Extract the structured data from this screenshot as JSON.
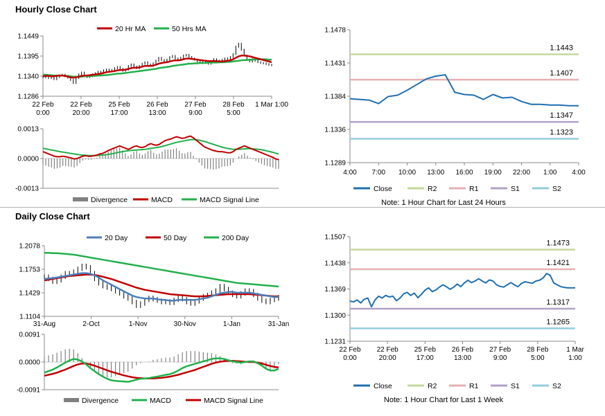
{
  "sections": {
    "hourly": "Hourly Close Chart",
    "daily": "Daily Close Chart"
  },
  "chart_data": [
    {
      "id": "hourly_ma",
      "type": "line",
      "ylim": [
        1.1286,
        1.1449
      ],
      "yticks": [
        "1.1449",
        "1.1395",
        "1.1340",
        "1.1286"
      ],
      "xticks": [
        "22 Feb\n0:00",
        "22 Feb\n20:00",
        "25 Feb\n17:00",
        "26 Feb\n13:00",
        "27 Feb\n9:00",
        "28 Feb\n5:00",
        "1 Mar 1:00"
      ],
      "legend": [
        "20 Hr MA",
        "50 Hrs MA"
      ],
      "colors": {
        "close": "#000000",
        "ma20": "#c00000",
        "ma50": "#22b04b"
      },
      "close": [
        1.1337,
        1.1339,
        1.1335,
        1.134,
        1.1332,
        1.1338,
        1.1342,
        1.1344,
        1.134,
        1.1336,
        1.133,
        1.1322,
        1.1335,
        1.1345,
        1.135,
        1.1342,
        1.1338,
        1.134,
        1.1345,
        1.1348,
        1.1352,
        1.135,
        1.1356,
        1.1358,
        1.1354,
        1.1357,
        1.1362,
        1.1365,
        1.136,
        1.1355,
        1.1358,
        1.1368,
        1.1372,
        1.1366,
        1.1362,
        1.1368,
        1.1374,
        1.1378,
        1.1372,
        1.1368,
        1.1375,
        1.1382,
        1.139,
        1.1384,
        1.138,
        1.1385,
        1.1392,
        1.1395,
        1.1388,
        1.1384,
        1.139,
        1.1396,
        1.1398,
        1.1392,
        1.1388,
        1.1385,
        1.138,
        1.1376,
        1.1382,
        1.1378,
        1.1374,
        1.138,
        1.1386,
        1.1382,
        1.1378,
        1.1384,
        1.1388,
        1.1386,
        1.1392,
        1.14,
        1.142,
        1.1428,
        1.1412,
        1.1396,
        1.1384,
        1.138,
        1.1386,
        1.1382,
        1.1378,
        1.1376,
        1.1375,
        1.1373,
        1.1371,
        1.137
      ],
      "ma20": [
        1.134,
        1.1341,
        1.1341,
        1.134,
        1.134,
        1.1341,
        1.1342,
        1.1342,
        1.1341,
        1.1339,
        1.1337,
        1.1336,
        1.1337,
        1.1339,
        1.1341,
        1.1342,
        1.1342,
        1.1343,
        1.1344,
        1.1345,
        1.1346,
        1.1347,
        1.1349,
        1.1351,
        1.1352,
        1.1353,
        1.1354,
        1.1356,
        1.1357,
        1.1357,
        1.1358,
        1.136,
        1.1362,
        1.1363,
        1.1363,
        1.1364,
        1.1366,
        1.1368,
        1.1368,
        1.1368,
        1.1369,
        1.1371,
        1.1374,
        1.1376,
        1.1377,
        1.1378,
        1.138,
        1.1382,
        1.1383,
        1.1383,
        1.1384,
        1.1386,
        1.1388,
        1.1388,
        1.1387,
        1.1386,
        1.1385,
        1.1384,
        1.1383,
        1.1382,
        1.1381,
        1.1381,
        1.1381,
        1.1381,
        1.138,
        1.138,
        1.1381,
        1.1382,
        1.1383,
        1.1386,
        1.139,
        1.1394,
        1.1396,
        1.1396,
        1.1395,
        1.1394,
        1.1392,
        1.139,
        1.1388,
        1.1386,
        1.1384,
        1.1382,
        1.138,
        1.1378
      ],
      "ma50": [
        1.1344,
        1.1344,
        1.1343,
        1.1343,
        1.1342,
        1.1342,
        1.1342,
        1.1342,
        1.1341,
        1.1341,
        1.134,
        1.1339,
        1.1339,
        1.1339,
        1.1339,
        1.134,
        1.134,
        1.134,
        1.1341,
        1.1341,
        1.1342,
        1.1342,
        1.1343,
        1.1343,
        1.1344,
        1.1345,
        1.1346,
        1.1347,
        1.1347,
        1.1348,
        1.1349,
        1.135,
        1.1351,
        1.1352,
        1.1353,
        1.1354,
        1.1355,
        1.1356,
        1.1357,
        1.1358,
        1.1359,
        1.136,
        1.1362,
        1.1363,
        1.1364,
        1.1365,
        1.1366,
        1.1368,
        1.1369,
        1.137,
        1.1371,
        1.1372,
        1.1373,
        1.1374,
        1.1374,
        1.1375,
        1.1375,
        1.1376,
        1.1376,
        1.1376,
        1.1377,
        1.1377,
        1.1377,
        1.1377,
        1.1378,
        1.1378,
        1.1378,
        1.1379,
        1.1379,
        1.138,
        1.1381,
        1.1382,
        1.1383,
        1.1384,
        1.1384,
        1.1385,
        1.1385,
        1.1386,
        1.1386,
        1.1386,
        1.1386,
        1.1386,
        1.1385,
        1.1385
      ]
    },
    {
      "id": "hourly_macd",
      "type": "line",
      "ylim": [
        -0.0013,
        0.0013
      ],
      "yticks": [
        "0.0013",
        "0.0000",
        "-0.0013"
      ],
      "legend": [
        "Divergence",
        "MACD",
        "MACD Signal Line"
      ],
      "colors": {
        "divergence": "#808080",
        "macd": "#c00000",
        "signal": "#22b04b"
      },
      "macd": [
        0.0003,
        0.00025,
        0.0002,
        0.00015,
        0.0001,
        8e-05,
        8e-05,
        0.0001,
        8e-05,
        5e-05,
        2e-05,
        -2e-05,
        0.0,
        5e-05,
        0.0001,
        0.00012,
        0.0001,
        0.0001,
        0.00012,
        0.00015,
        0.0002,
        0.00022,
        0.00028,
        0.00035,
        0.0004,
        0.00045,
        0.0005,
        0.00055,
        0.0005,
        0.00045,
        0.0004,
        0.00045,
        0.00052,
        0.00055,
        0.0005,
        0.00048,
        0.00052,
        0.0006,
        0.00065,
        0.0006,
        0.00058,
        0.00062,
        0.0007,
        0.00078,
        0.00082,
        0.00085,
        0.0009,
        0.00095,
        0.00092,
        0.00088,
        0.0009,
        0.00095,
        0.00098,
        0.0009,
        0.0008,
        0.0007,
        0.0006,
        0.0005,
        0.00045,
        0.0004,
        0.00035,
        0.00032,
        0.0003,
        0.0003,
        0.00028,
        0.00025,
        0.00025,
        0.0003,
        0.0004,
        0.00045,
        0.0005,
        0.00055,
        0.0005,
        0.00045,
        0.0004,
        0.00035,
        0.0003,
        0.00025,
        0.0002,
        0.00015,
        0.0001,
        5e-05,
        -2e-05,
        -5e-05
      ],
      "signal": [
        0.00045,
        0.00042,
        0.0004,
        0.00037,
        0.00035,
        0.00032,
        0.0003,
        0.00028,
        0.00026,
        0.00024,
        0.00022,
        0.0002,
        0.00018,
        0.00016,
        0.00015,
        0.00014,
        0.00013,
        0.00013,
        0.00013,
        0.00013,
        0.00014,
        0.00015,
        0.00016,
        0.00018,
        0.0002,
        0.00022,
        0.00025,
        0.00028,
        0.0003,
        0.00032,
        0.00034,
        0.00035,
        0.00036,
        0.00037,
        0.00038,
        0.00039,
        0.0004,
        0.00042,
        0.00044,
        0.00046,
        0.00048,
        0.0005,
        0.00053,
        0.00056,
        0.0006,
        0.00063,
        0.00067,
        0.0007,
        0.00073,
        0.00075,
        0.00078,
        0.0008,
        0.00082,
        0.00083,
        0.00082,
        0.0008,
        0.00077,
        0.00074,
        0.0007,
        0.00066,
        0.00062,
        0.00058,
        0.00054,
        0.0005,
        0.00047,
        0.00044,
        0.00042,
        0.0004,
        0.0004,
        0.0004,
        0.00041,
        0.00042,
        0.00043,
        0.00043,
        0.00042,
        0.00041,
        0.0004,
        0.00038,
        0.00036,
        0.00033,
        0.0003,
        0.00027,
        0.00023,
        0.0002
      ]
    },
    {
      "id": "hourly_levels",
      "type": "line",
      "ylim": [
        1.1289,
        1.1478
      ],
      "yticks": [
        "1.1478",
        "1.1431",
        "1.1384",
        "1.1336",
        "1.1289"
      ],
      "xticks": [
        "4:00",
        "7:00",
        "10:00",
        "13:00",
        "16:00",
        "19:00",
        "22:00",
        "1:00",
        "4:00"
      ],
      "levels": [
        {
          "name": "R2",
          "value": 1.1443,
          "label": "1.1443",
          "color": "#c4d79b"
        },
        {
          "name": "R1",
          "value": 1.1407,
          "label": "1.1407",
          "color": "#e6b0b0"
        },
        {
          "name": "S1",
          "value": 1.1347,
          "label": "1.1347",
          "color": "#b1a0c7"
        },
        {
          "name": "S2",
          "value": 1.1323,
          "label": "1.1323",
          "color": "#92cddc"
        }
      ],
      "close_color": "#1f6fb0",
      "legend": [
        "Close",
        "R2",
        "R1",
        "S1",
        "S2"
      ],
      "note": "Note: 1 Hour Chart for Last 24 Hours",
      "close": [
        1.138,
        1.1379,
        1.1378,
        1.1373,
        1.1383,
        1.1385,
        1.1392,
        1.14,
        1.1408,
        1.1412,
        1.1414,
        1.1389,
        1.1386,
        1.1385,
        1.1379,
        1.1386,
        1.1381,
        1.1382,
        1.1376,
        1.1372,
        1.1372,
        1.1371,
        1.1371,
        1.137,
        1.137
      ]
    },
    {
      "id": "daily_ma",
      "type": "line",
      "ylim": [
        1.1104,
        1.2078
      ],
      "yticks": [
        "1.2078",
        "1.1753",
        "1.1429",
        "1.1104"
      ],
      "xticks": [
        "31-Aug",
        "2-Oct",
        "1-Nov",
        "30-Nov",
        "1-Jan",
        "31-Jan"
      ],
      "legend": [
        "20 Day",
        "50 Day",
        "200 Day"
      ],
      "colors": {
        "close": "#000000",
        "ma20": "#4a7ebb",
        "ma50": "#c00000",
        "ma200": "#22b04b"
      },
      "close": [
        1.165,
        1.162,
        1.158,
        1.16,
        1.165,
        1.17,
        1.168,
        1.172,
        1.176,
        1.18,
        1.178,
        1.17,
        1.162,
        1.156,
        1.152,
        1.15,
        1.148,
        1.145,
        1.142,
        1.138,
        1.135,
        1.13,
        1.125,
        1.128,
        1.133,
        1.136,
        1.134,
        1.132,
        1.13,
        1.131,
        1.129,
        1.133,
        1.136,
        1.134,
        1.13,
        1.128,
        1.131,
        1.135,
        1.138,
        1.14,
        1.143,
        1.146,
        1.152,
        1.148,
        1.143,
        1.14,
        1.138,
        1.142,
        1.146,
        1.145,
        1.14,
        1.135,
        1.132,
        1.13,
        1.133,
        1.135,
        1.137
      ],
      "ma20": [
        1.162,
        1.1625,
        1.163,
        1.164,
        1.165,
        1.166,
        1.167,
        1.168,
        1.169,
        1.17,
        1.17,
        1.169,
        1.167,
        1.164,
        1.16,
        1.157,
        1.154,
        1.151,
        1.148,
        1.145,
        1.142,
        1.139,
        1.137,
        1.136,
        1.135,
        1.135,
        1.135,
        1.134,
        1.133,
        1.133,
        1.132,
        1.132,
        1.133,
        1.133,
        1.133,
        1.133,
        1.133,
        1.134,
        1.135,
        1.136,
        1.138,
        1.14,
        1.142,
        1.143,
        1.144,
        1.144,
        1.143,
        1.143,
        1.143,
        1.143,
        1.142,
        1.141,
        1.14,
        1.139,
        1.138,
        1.137,
        1.137
      ],
      "ma50": [
        1.16,
        1.161,
        1.162,
        1.163,
        1.164,
        1.165,
        1.166,
        1.1665,
        1.167,
        1.1675,
        1.168,
        1.168,
        1.1675,
        1.1665,
        1.165,
        1.1635,
        1.162,
        1.16,
        1.158,
        1.156,
        1.154,
        1.152,
        1.15,
        1.1485,
        1.147,
        1.146,
        1.145,
        1.144,
        1.143,
        1.142,
        1.141,
        1.1405,
        1.14,
        1.1395,
        1.139,
        1.1385,
        1.138,
        1.138,
        1.138,
        1.1385,
        1.139,
        1.1395,
        1.14,
        1.1405,
        1.141,
        1.141,
        1.141,
        1.141,
        1.141,
        1.141,
        1.1405,
        1.14,
        1.1395,
        1.139,
        1.1385,
        1.138,
        1.138
      ],
      "ma200": [
        1.198,
        1.198,
        1.1975,
        1.1975,
        1.197,
        1.1965,
        1.196,
        1.1955,
        1.1945,
        1.1935,
        1.1925,
        1.1915,
        1.1905,
        1.1895,
        1.1885,
        1.1875,
        1.1865,
        1.1855,
        1.1845,
        1.1835,
        1.1825,
        1.1815,
        1.1805,
        1.1795,
        1.1785,
        1.1775,
        1.1765,
        1.1755,
        1.1745,
        1.1735,
        1.1725,
        1.1715,
        1.1705,
        1.1695,
        1.1685,
        1.1675,
        1.1665,
        1.1655,
        1.1645,
        1.1635,
        1.1625,
        1.1615,
        1.1605,
        1.1595,
        1.1585,
        1.1575,
        1.1565,
        1.156,
        1.1555,
        1.155,
        1.1545,
        1.154,
        1.1535,
        1.153,
        1.1525,
        1.152,
        1.1515
      ]
    },
    {
      "id": "daily_macd",
      "type": "line",
      "ylim": [
        -0.0091,
        0.0091
      ],
      "yticks": [
        "0.0091",
        "0.0000",
        "-0.0091"
      ],
      "legend": [
        "Divergence",
        "MACD",
        "MACD Signal Line"
      ],
      "colors": {
        "divergence": "#808080",
        "macd": "#22b04b",
        "signal": "#c00000"
      },
      "macd": [
        -0.0035,
        -0.003,
        -0.0025,
        -0.0018,
        -0.001,
        -0.0002,
        0.0005,
        0.001,
        0.0008,
        0.0002,
        -0.0008,
        -0.002,
        -0.003,
        -0.004,
        -0.0048,
        -0.0055,
        -0.006,
        -0.0062,
        -0.0063,
        -0.0064,
        -0.0065,
        -0.0062,
        -0.0058,
        -0.0055,
        -0.0054,
        -0.0053,
        -0.005,
        -0.0048,
        -0.0045,
        -0.0042,
        -0.004,
        -0.0035,
        -0.0028,
        -0.002,
        -0.0014,
        -0.001,
        -0.0006,
        -0.0002,
        0.0002,
        0.0006,
        0.001,
        0.0012,
        0.0012,
        0.001,
        0.0006,
        0.0002,
        0.0,
        -0.0002,
        0.0,
        0.0002,
        0.0002,
        -0.0004,
        -0.0012,
        -0.0022,
        -0.0028,
        -0.0028,
        -0.0022
      ],
      "signal": [
        -0.0045,
        -0.0042,
        -0.0039,
        -0.0035,
        -0.003,
        -0.0025,
        -0.0019,
        -0.0013,
        -0.0008,
        -0.0005,
        -0.0005,
        -0.0008,
        -0.0012,
        -0.0017,
        -0.0022,
        -0.0027,
        -0.0032,
        -0.0036,
        -0.004,
        -0.0044,
        -0.0047,
        -0.005,
        -0.0052,
        -0.0053,
        -0.0054,
        -0.0054,
        -0.0054,
        -0.0053,
        -0.0052,
        -0.005,
        -0.0048,
        -0.0045,
        -0.0042,
        -0.0038,
        -0.0034,
        -0.003,
        -0.0026,
        -0.0021,
        -0.0016,
        -0.0011,
        -0.0006,
        -0.0002,
        0.0001,
        0.0003,
        0.0004,
        0.0004,
        0.0003,
        0.0002,
        0.0001,
        0.0,
        0.0,
        -0.0002,
        -0.0005,
        -0.0009,
        -0.0013,
        -0.0016,
        -0.0018
      ]
    },
    {
      "id": "daily_levels",
      "type": "line",
      "ylim": [
        1.1231,
        1.1507
      ],
      "yticks": [
        "1.1507",
        "1.1438",
        "1.1369",
        "1.1300",
        "1.1231"
      ],
      "xticks": [
        "22 Feb\n0:00",
        "22 Feb\n20:00",
        "25 Feb\n17:00",
        "26 Feb\n13:00",
        "27 Feb\n9:00",
        "28 Feb\n5:00",
        "1 Mar\n1:00"
      ],
      "levels": [
        {
          "name": "R2",
          "value": 1.1473,
          "label": "1.1473",
          "color": "#c4d79b"
        },
        {
          "name": "R1",
          "value": 1.1421,
          "label": "1.1421",
          "color": "#e6b0b0"
        },
        {
          "name": "S1",
          "value": 1.1317,
          "label": "1.1317",
          "color": "#b1a0c7"
        },
        {
          "name": "S2",
          "value": 1.1265,
          "label": "1.1265",
          "color": "#92cddc"
        }
      ],
      "close_color": "#1f6fb0",
      "legend": [
        "Close",
        "R2",
        "R1",
        "S1",
        "S2"
      ],
      "note": "Note: 1 Hour Chart for Last 1 Week",
      "close": [
        1.1337,
        1.1335,
        1.134,
        1.1332,
        1.1342,
        1.1345,
        1.1322,
        1.134,
        1.135,
        1.1345,
        1.1352,
        1.1348,
        1.135,
        1.1338,
        1.1345,
        1.1356,
        1.136,
        1.1352,
        1.1358,
        1.1346,
        1.1355,
        1.1366,
        1.1372,
        1.1362,
        1.1366,
        1.1374,
        1.138,
        1.1375,
        1.1368,
        1.1374,
        1.1382,
        1.1375,
        1.1385,
        1.1392,
        1.1386,
        1.139,
        1.1396,
        1.139,
        1.1385,
        1.1393,
        1.139,
        1.138,
        1.1376,
        1.1374,
        1.138,
        1.1386,
        1.138,
        1.1375,
        1.1384,
        1.1388,
        1.1386,
        1.1384,
        1.139,
        1.1392,
        1.1398,
        1.141,
        1.1405,
        1.1385,
        1.138,
        1.1375,
        1.1373,
        1.1372,
        1.1372,
        1.1372
      ]
    }
  ]
}
